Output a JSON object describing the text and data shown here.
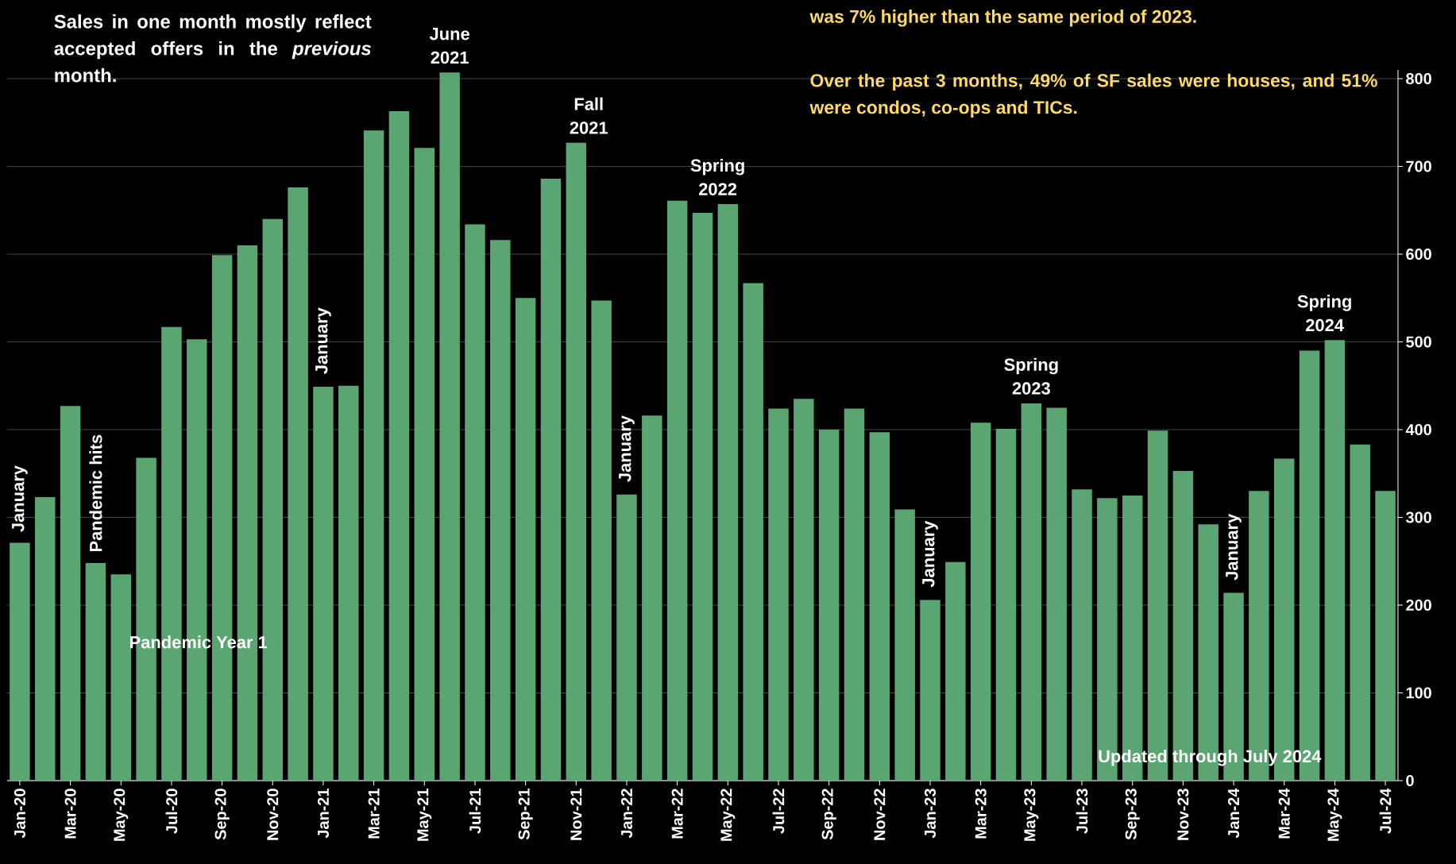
{
  "chart_data": {
    "type": "bar",
    "categories": [
      "Jan-20",
      null,
      "Mar-20",
      null,
      "May-20",
      null,
      "Jul-20",
      null,
      "Sep-20",
      null,
      "Nov-20",
      null,
      "Jan-21",
      null,
      "Mar-21",
      null,
      "May-21",
      null,
      "Jul-21",
      null,
      "Sep-21",
      null,
      "Nov-21",
      null,
      "Jan-22",
      null,
      "Mar-22",
      null,
      "May-22",
      null,
      "Jul-22",
      null,
      "Sep-22",
      null,
      "Nov-22",
      null,
      "Jan-23",
      null,
      "Mar-23",
      null,
      "May-23",
      null,
      "Jul-23",
      null,
      "Sep-23",
      null,
      "Nov-23",
      null,
      "Jan-24",
      null,
      "Mar-24",
      null,
      "May-24",
      null,
      "Jul-24"
    ],
    "values": [
      271,
      323,
      427,
      248,
      235,
      368,
      517,
      503,
      599,
      610,
      640,
      676,
      449,
      450,
      741,
      763,
      721,
      807,
      634,
      616,
      550,
      686,
      727,
      547,
      326,
      416,
      661,
      647,
      657,
      567,
      424,
      435,
      400,
      424,
      397,
      309,
      206,
      249,
      408,
      401,
      430,
      425,
      332,
      322,
      325,
      399,
      353,
      292,
      214,
      330,
      367,
      490,
      502,
      383,
      330
    ],
    "color": "#5ba572",
    "ylim": [
      0,
      810
    ],
    "yticks": [
      0,
      100,
      200,
      300,
      400,
      500,
      600,
      700,
      800
    ],
    "grid": "y",
    "annotations": [
      "Sales in one month mostly reflect accepted offers in the *previous* month.",
      "was 7% higher than the same period of 2023.",
      "Over the past 3 months, 49% of SF sales were houses, and 51% were condos, co-ops and TICs.",
      "January",
      "Pandemic hits",
      "Pandemic Year 1",
      "January",
      "June 2021",
      "Fall 2021",
      "January",
      "Spring 2022",
      "January",
      "Spring 2023",
      "January",
      "Spring 2024",
      "Updated through July 2024"
    ]
  }
}
